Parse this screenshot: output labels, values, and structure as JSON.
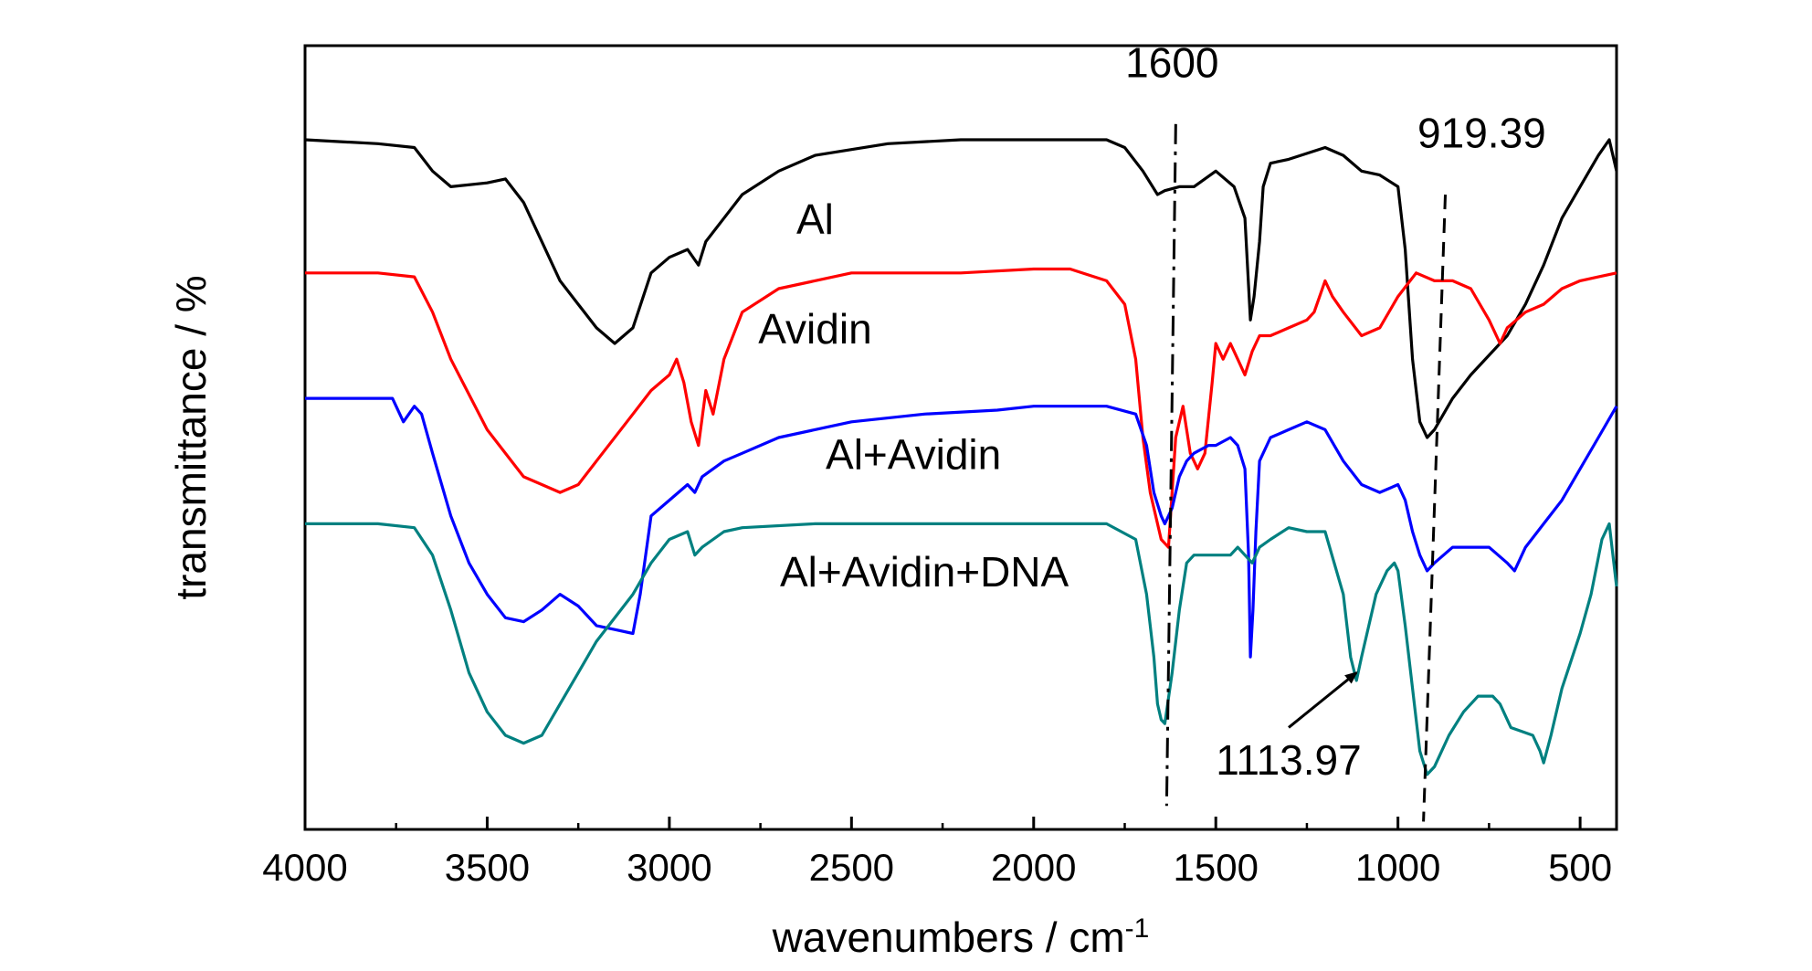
{
  "chart_data": {
    "type": "line",
    "xlabel": "wavenumbers / cm",
    "xlabel_superscript": "-1",
    "ylabel": "transmittance / %",
    "xlim": [
      4000,
      400
    ],
    "ylim": [
      0,
      100
    ],
    "x_reversed": true,
    "yticks_shown": false,
    "grid": false,
    "xticks": [
      4000,
      3500,
      3000,
      2500,
      2000,
      1500,
      1000,
      500
    ],
    "xtick_labels": [
      "4000",
      "3500",
      "3000",
      "2500",
      "2000",
      "1500",
      "1000",
      "500"
    ],
    "series": [
      {
        "color": "#000000",
        "label": "Al",
        "points": [
          [
            4000,
            88
          ],
          [
            3800,
            87.5
          ],
          [
            3700,
            87
          ],
          [
            3650,
            84
          ],
          [
            3600,
            82
          ],
          [
            3500,
            82.5
          ],
          [
            3450,
            83
          ],
          [
            3400,
            80
          ],
          [
            3300,
            70
          ],
          [
            3200,
            64
          ],
          [
            3150,
            62
          ],
          [
            3100,
            64
          ],
          [
            3050,
            71
          ],
          [
            3000,
            73
          ],
          [
            2950,
            74
          ],
          [
            2920,
            72
          ],
          [
            2900,
            75
          ],
          [
            2850,
            78
          ],
          [
            2800,
            81
          ],
          [
            2700,
            84
          ],
          [
            2600,
            86
          ],
          [
            2400,
            87.5
          ],
          [
            2200,
            88
          ],
          [
            2000,
            88
          ],
          [
            1800,
            88
          ],
          [
            1750,
            87
          ],
          [
            1700,
            84
          ],
          [
            1660,
            81
          ],
          [
            1640,
            81.5
          ],
          [
            1600,
            82
          ],
          [
            1560,
            82
          ],
          [
            1500,
            84
          ],
          [
            1450,
            82
          ],
          [
            1420,
            78
          ],
          [
            1405,
            65
          ],
          [
            1395,
            68
          ],
          [
            1380,
            75
          ],
          [
            1370,
            82
          ],
          [
            1350,
            85
          ],
          [
            1300,
            85.5
          ],
          [
            1200,
            87
          ],
          [
            1150,
            86
          ],
          [
            1100,
            84
          ],
          [
            1050,
            83.5
          ],
          [
            1000,
            82
          ],
          [
            980,
            74
          ],
          [
            960,
            60
          ],
          [
            940,
            52
          ],
          [
            920,
            50
          ],
          [
            900,
            51
          ],
          [
            850,
            55
          ],
          [
            800,
            58
          ],
          [
            700,
            63
          ],
          [
            650,
            67
          ],
          [
            600,
            72
          ],
          [
            550,
            78
          ],
          [
            500,
            82
          ],
          [
            450,
            86
          ],
          [
            420,
            88
          ],
          [
            400,
            84
          ]
        ]
      },
      {
        "color": "#ff0000",
        "label": "Avidin",
        "points": [
          [
            4000,
            71
          ],
          [
            3800,
            71
          ],
          [
            3700,
            70.5
          ],
          [
            3650,
            66
          ],
          [
            3600,
            60
          ],
          [
            3500,
            51
          ],
          [
            3400,
            45
          ],
          [
            3350,
            44
          ],
          [
            3300,
            43
          ],
          [
            3250,
            44
          ],
          [
            3200,
            47
          ],
          [
            3100,
            53
          ],
          [
            3050,
            56
          ],
          [
            3000,
            58
          ],
          [
            2980,
            60
          ],
          [
            2960,
            57
          ],
          [
            2940,
            52
          ],
          [
            2920,
            49
          ],
          [
            2900,
            56
          ],
          [
            2880,
            53
          ],
          [
            2850,
            60
          ],
          [
            2800,
            66
          ],
          [
            2700,
            69
          ],
          [
            2500,
            71
          ],
          [
            2300,
            71
          ],
          [
            2200,
            71
          ],
          [
            2000,
            71.5
          ],
          [
            1900,
            71.5
          ],
          [
            1800,
            70
          ],
          [
            1750,
            67
          ],
          [
            1720,
            60
          ],
          [
            1700,
            50
          ],
          [
            1680,
            43
          ],
          [
            1665,
            40
          ],
          [
            1650,
            37
          ],
          [
            1640,
            36.5
          ],
          [
            1630,
            36
          ],
          [
            1610,
            50
          ],
          [
            1590,
            54
          ],
          [
            1570,
            48
          ],
          [
            1550,
            46
          ],
          [
            1530,
            48
          ],
          [
            1510,
            57
          ],
          [
            1500,
            62
          ],
          [
            1480,
            60
          ],
          [
            1460,
            62
          ],
          [
            1440,
            60
          ],
          [
            1420,
            58
          ],
          [
            1400,
            61
          ],
          [
            1380,
            63
          ],
          [
            1350,
            63
          ],
          [
            1300,
            64
          ],
          [
            1250,
            65
          ],
          [
            1230,
            66
          ],
          [
            1200,
            70
          ],
          [
            1180,
            68
          ],
          [
            1150,
            66
          ],
          [
            1100,
            63
          ],
          [
            1050,
            64
          ],
          [
            1000,
            68
          ],
          [
            950,
            71
          ],
          [
            900,
            70
          ],
          [
            850,
            70
          ],
          [
            800,
            69
          ],
          [
            750,
            65
          ],
          [
            720,
            62
          ],
          [
            700,
            64
          ],
          [
            650,
            66
          ],
          [
            600,
            67
          ],
          [
            550,
            69
          ],
          [
            500,
            70
          ],
          [
            450,
            70.5
          ],
          [
            400,
            71
          ]
        ]
      },
      {
        "color": "#0000ff",
        "label": "Al+Avidin",
        "points": [
          [
            4000,
            55
          ],
          [
            3800,
            55
          ],
          [
            3760,
            55
          ],
          [
            3730,
            52
          ],
          [
            3700,
            54
          ],
          [
            3680,
            53
          ],
          [
            3650,
            48
          ],
          [
            3600,
            40
          ],
          [
            3550,
            34
          ],
          [
            3500,
            30
          ],
          [
            3450,
            27
          ],
          [
            3400,
            26.5
          ],
          [
            3350,
            28
          ],
          [
            3300,
            30
          ],
          [
            3250,
            28.5
          ],
          [
            3200,
            26
          ],
          [
            3150,
            25.5
          ],
          [
            3100,
            25
          ],
          [
            3080,
            30
          ],
          [
            3050,
            40
          ],
          [
            3000,
            42
          ],
          [
            2950,
            44
          ],
          [
            2930,
            43
          ],
          [
            2910,
            45
          ],
          [
            2880,
            46
          ],
          [
            2850,
            47
          ],
          [
            2800,
            48
          ],
          [
            2700,
            50
          ],
          [
            2500,
            52
          ],
          [
            2300,
            53
          ],
          [
            2100,
            53.5
          ],
          [
            2000,
            54
          ],
          [
            1800,
            54
          ],
          [
            1720,
            53
          ],
          [
            1690,
            49
          ],
          [
            1670,
            43
          ],
          [
            1650,
            40
          ],
          [
            1640,
            39
          ],
          [
            1620,
            41
          ],
          [
            1600,
            45
          ],
          [
            1580,
            47
          ],
          [
            1560,
            48
          ],
          [
            1520,
            49
          ],
          [
            1500,
            49
          ],
          [
            1460,
            50
          ],
          [
            1440,
            49
          ],
          [
            1420,
            46
          ],
          [
            1410,
            35
          ],
          [
            1405,
            22
          ],
          [
            1398,
            28
          ],
          [
            1390,
            38
          ],
          [
            1380,
            47
          ],
          [
            1350,
            50
          ],
          [
            1300,
            51
          ],
          [
            1250,
            52
          ],
          [
            1200,
            51
          ],
          [
            1150,
            47
          ],
          [
            1100,
            44
          ],
          [
            1050,
            43
          ],
          [
            1000,
            44
          ],
          [
            980,
            42
          ],
          [
            960,
            38
          ],
          [
            940,
            35
          ],
          [
            920,
            33
          ],
          [
            900,
            34
          ],
          [
            850,
            36
          ],
          [
            800,
            36
          ],
          [
            750,
            36
          ],
          [
            700,
            34
          ],
          [
            680,
            33
          ],
          [
            650,
            36
          ],
          [
            600,
            39
          ],
          [
            550,
            42
          ],
          [
            500,
            46
          ],
          [
            450,
            50
          ],
          [
            400,
            54
          ]
        ]
      },
      {
        "color": "#008080",
        "label": "Al+Avidin+DNA",
        "points": [
          [
            4000,
            39
          ],
          [
            3800,
            39
          ],
          [
            3700,
            38.5
          ],
          [
            3650,
            35
          ],
          [
            3600,
            28
          ],
          [
            3550,
            20
          ],
          [
            3500,
            15
          ],
          [
            3450,
            12
          ],
          [
            3400,
            11
          ],
          [
            3350,
            12
          ],
          [
            3300,
            16
          ],
          [
            3250,
            20
          ],
          [
            3200,
            24
          ],
          [
            3100,
            30
          ],
          [
            3050,
            34
          ],
          [
            3000,
            37
          ],
          [
            2950,
            38
          ],
          [
            2930,
            35
          ],
          [
            2910,
            36
          ],
          [
            2880,
            37
          ],
          [
            2850,
            38
          ],
          [
            2800,
            38.5
          ],
          [
            2600,
            39
          ],
          [
            2400,
            39
          ],
          [
            2200,
            39
          ],
          [
            2000,
            39
          ],
          [
            1800,
            39
          ],
          [
            1720,
            37
          ],
          [
            1690,
            30
          ],
          [
            1670,
            22
          ],
          [
            1660,
            16
          ],
          [
            1650,
            14
          ],
          [
            1640,
            13.5
          ],
          [
            1620,
            20
          ],
          [
            1600,
            28
          ],
          [
            1580,
            34
          ],
          [
            1560,
            35
          ],
          [
            1500,
            35
          ],
          [
            1460,
            35
          ],
          [
            1440,
            36
          ],
          [
            1420,
            35
          ],
          [
            1400,
            34
          ],
          [
            1380,
            36
          ],
          [
            1350,
            37
          ],
          [
            1300,
            38.5
          ],
          [
            1250,
            38
          ],
          [
            1200,
            38
          ],
          [
            1150,
            30
          ],
          [
            1130,
            22
          ],
          [
            1114,
            19
          ],
          [
            1100,
            22
          ],
          [
            1060,
            30
          ],
          [
            1030,
            33
          ],
          [
            1010,
            34
          ],
          [
            1000,
            33
          ],
          [
            980,
            26
          ],
          [
            960,
            18
          ],
          [
            940,
            10
          ],
          [
            920,
            7
          ],
          [
            900,
            8
          ],
          [
            860,
            12
          ],
          [
            820,
            15
          ],
          [
            780,
            17
          ],
          [
            740,
            17
          ],
          [
            720,
            16
          ],
          [
            690,
            13
          ],
          [
            660,
            12.5
          ],
          [
            630,
            12
          ],
          [
            610,
            10
          ],
          [
            600,
            8.5
          ],
          [
            580,
            12
          ],
          [
            550,
            18
          ],
          [
            500,
            25
          ],
          [
            470,
            30
          ],
          [
            440,
            37
          ],
          [
            420,
            39
          ],
          [
            400,
            31
          ]
        ]
      }
    ],
    "labels": [
      {
        "text": "Al",
        "x": 2600,
        "y": 76
      },
      {
        "text": "Avidin",
        "x": 2600,
        "y": 62
      },
      {
        "text": "Al+Avidin",
        "x": 2330,
        "y": 46
      },
      {
        "text": "Al+Avidin+DNA",
        "x": 2300,
        "y": 31
      }
    ],
    "annotations": [
      {
        "text": "1600",
        "x": 1620,
        "y": 96,
        "line_style": "dash-dot",
        "line_from": [
          1610,
          90
        ],
        "line_to": [
          1635,
          3
        ]
      },
      {
        "text": "919.39",
        "x": 770,
        "y": 87,
        "line_style": "dashed",
        "line_from": [
          870,
          81
        ],
        "line_to": [
          930,
          1
        ]
      },
      {
        "text": "1113.97",
        "x": 1300,
        "y": 7,
        "arrow_from": [
          1300,
          13
        ],
        "arrow_to": [
          1114,
          20
        ]
      }
    ]
  }
}
